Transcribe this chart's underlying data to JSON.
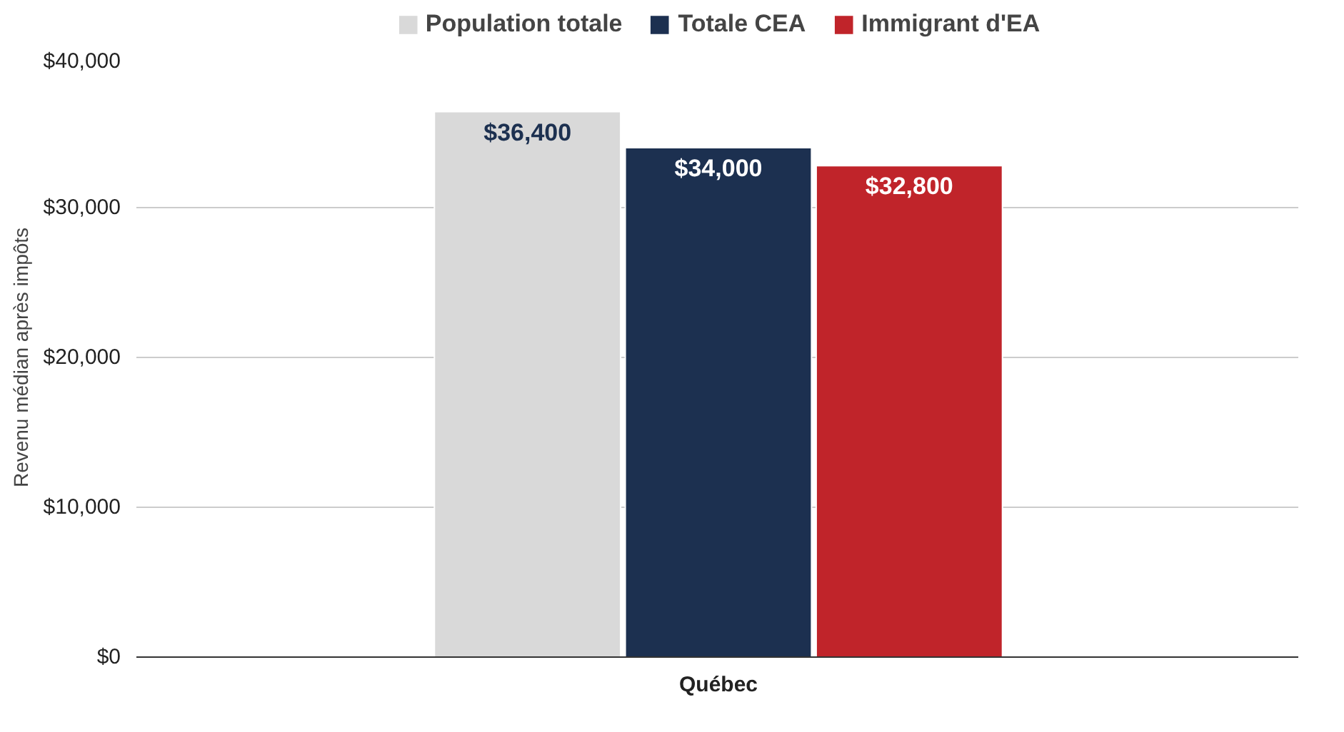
{
  "chart_data": {
    "type": "bar",
    "ylabel": "Revenu médian après impôts",
    "categories": [
      "Québec"
    ],
    "series": [
      {
        "name": "Population totale",
        "color": "#d9d9d9",
        "values": [
          36400
        ],
        "value_labels": [
          "$36,400"
        ]
      },
      {
        "name": "Totale CEA",
        "color": "#1c3050",
        "values": [
          34000
        ],
        "value_labels": [
          "$34,000"
        ]
      },
      {
        "name": "Immigrant d'EA",
        "color": "#c0242a",
        "values": [
          32800
        ],
        "value_labels": [
          "$32,800"
        ]
      }
    ],
    "ylim": [
      0,
      40000
    ],
    "yticks": [
      {
        "value": 0,
        "label": "$0"
      },
      {
        "value": 10000,
        "label": "$10,000"
      },
      {
        "value": 20000,
        "label": "$20,000"
      },
      {
        "value": 30000,
        "label": "$30,000"
      },
      {
        "value": 40000,
        "label": "$40,000"
      }
    ],
    "grid": "y",
    "legend": "top"
  }
}
